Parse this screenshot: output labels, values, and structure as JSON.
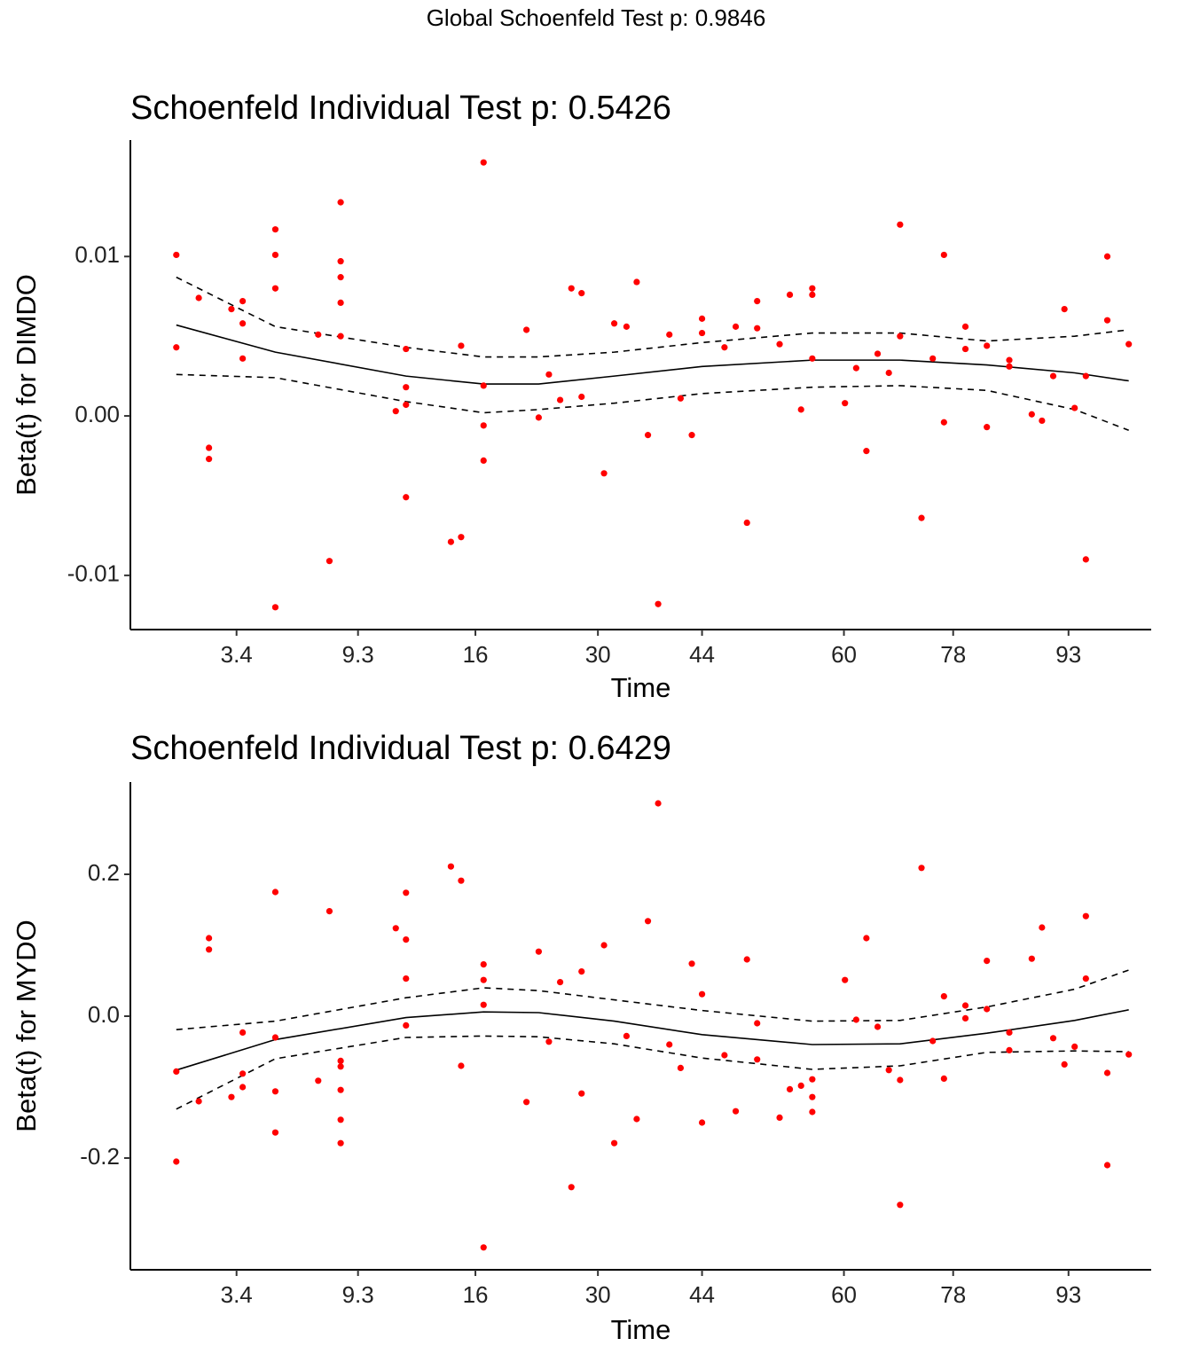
{
  "title": "Global Schoenfeld Test p: 0.9846",
  "chart_data": [
    {
      "type": "scatter",
      "title": "Schoenfeld Individual Test p: 0.5426",
      "xlabel": "Time",
      "ylabel": "Beta(t) for DIMDO",
      "xlim": [
        0,
        100
      ],
      "ylim": [
        -0.0134,
        0.0173
      ],
      "xticks": [
        {
          "value": 10.4,
          "label": "3.4"
        },
        {
          "value": 22.3,
          "label": "9.3"
        },
        {
          "value": 33.8,
          "label": "16"
        },
        {
          "value": 45.8,
          "label": "30"
        },
        {
          "value": 56.0,
          "label": "44"
        },
        {
          "value": 69.9,
          "label": "60"
        },
        {
          "value": 80.6,
          "label": "78"
        },
        {
          "value": 91.9,
          "label": "93"
        }
      ],
      "yticks": [
        -0.01,
        {
          "value": 0,
          "label": "0.00"
        },
        0.01
      ],
      "points": {
        "color": "#ff0000",
        "x": [
          4.5,
          4.5,
          6.7,
          7.7,
          7.7,
          9.9,
          11.0,
          11.0,
          11.0,
          14.2,
          14.2,
          14.2,
          14.2,
          18.4,
          19.5,
          20.6,
          20.6,
          20.6,
          20.6,
          20.6,
          26.0,
          27.0,
          27.0,
          27.0,
          27.0,
          31.4,
          32.4,
          32.4,
          34.6,
          34.6,
          34.6,
          34.6,
          38.8,
          40.0,
          41.0,
          42.1,
          43.2,
          44.2,
          44.2,
          46.4,
          47.4,
          48.6,
          49.6,
          50.7,
          51.7,
          52.8,
          53.9,
          55.0,
          56.0,
          56.0,
          58.2,
          59.3,
          60.4,
          61.4,
          61.4,
          63.6,
          64.6,
          65.7,
          66.8,
          66.8,
          66.8,
          70.0,
          71.1,
          72.1,
          73.2,
          74.3,
          75.4,
          75.4,
          77.5,
          78.6,
          79.7,
          79.7,
          81.8,
          81.8,
          83.9,
          83.9,
          86.1,
          86.1,
          88.3,
          89.3,
          90.4,
          91.5,
          92.5,
          93.6,
          93.6,
          95.7,
          95.7,
          97.8
        ],
        "y": [
          0.0101,
          0.0043,
          0.0074,
          -0.002,
          -0.0027,
          0.0067,
          0.0072,
          0.0058,
          0.0036,
          0.0117,
          0.0101,
          0.008,
          -0.012,
          0.0051,
          -0.0091,
          0.0134,
          0.0097,
          0.0087,
          0.0071,
          0.005,
          0.0003,
          0.0042,
          0.0018,
          0.0007,
          -0.0051,
          -0.0079,
          -0.0076,
          0.0044,
          0.0159,
          0.0019,
          -0.0006,
          -0.0028,
          0.0054,
          -0.0001,
          0.0026,
          0.001,
          0.008,
          0.0077,
          0.0012,
          -0.0036,
          0.0058,
          0.0056,
          0.0084,
          -0.0012,
          -0.0118,
          0.0051,
          0.0011,
          -0.0012,
          0.0061,
          0.0052,
          0.0043,
          0.0056,
          -0.0067,
          0.0072,
          0.0055,
          0.0045,
          0.0076,
          0.0004,
          0.008,
          0.0076,
          0.0036,
          0.0008,
          0.003,
          -0.0022,
          0.0039,
          0.0027,
          0.012,
          0.005,
          -0.0064,
          0.0036,
          0.0101,
          -0.0004,
          0.0056,
          0.0042,
          0.0044,
          -0.0007,
          0.0035,
          0.0031,
          0.0001,
          -0.0003,
          0.0025,
          0.0067,
          0.0005,
          -0.009,
          0.0025,
          0.01,
          0.006,
          0.0045
        ]
      },
      "curves": {
        "color": "#000000",
        "x": [
          4.5,
          14.2,
          27.0,
          34.6,
          40.0,
          47.4,
          56.0,
          66.8,
          75.4,
          83.9,
          92.5,
          97.8
        ],
        "fit": [
          0.0057,
          0.004,
          0.0025,
          0.002,
          0.002,
          0.0025,
          0.0031,
          0.0035,
          0.0035,
          0.0032,
          0.0027,
          0.0022
        ],
        "upper": [
          0.0087,
          0.0056,
          0.0043,
          0.0037,
          0.0037,
          0.004,
          0.0046,
          0.0052,
          0.0052,
          0.0047,
          0.005,
          0.0054
        ],
        "lower": [
          0.0026,
          0.0024,
          0.0009,
          0.0002,
          0.0004,
          0.0008,
          0.0014,
          0.0018,
          0.0019,
          0.0016,
          0.0004,
          -0.0009
        ]
      }
    },
    {
      "type": "scatter",
      "title": "Schoenfeld Individual Test p: 0.6429",
      "xlabel": "Time",
      "ylabel": "Beta(t) for MYDO",
      "xlim": [
        0,
        100
      ],
      "ylim": [
        -0.3575,
        0.33
      ],
      "xticks": [
        {
          "value": 10.4,
          "label": "3.4"
        },
        {
          "value": 22.3,
          "label": "9.3"
        },
        {
          "value": 33.8,
          "label": "16"
        },
        {
          "value": 45.8,
          "label": "30"
        },
        {
          "value": 56.0,
          "label": "44"
        },
        {
          "value": 69.9,
          "label": "60"
        },
        {
          "value": 80.6,
          "label": "78"
        },
        {
          "value": 91.9,
          "label": "93"
        }
      ],
      "yticks": [
        -0.2,
        {
          "value": 0,
          "label": "0.0"
        },
        0.2
      ],
      "points": {
        "color": "#ff0000",
        "x": [
          4.5,
          4.5,
          6.7,
          7.7,
          7.7,
          9.9,
          11.0,
          11.0,
          11.0,
          14.2,
          14.2,
          14.2,
          14.2,
          18.4,
          19.5,
          20.6,
          20.6,
          20.6,
          20.6,
          20.6,
          26.0,
          27.0,
          27.0,
          27.0,
          27.0,
          31.4,
          32.4,
          32.4,
          34.6,
          34.6,
          34.6,
          34.6,
          38.8,
          40.0,
          41.0,
          42.1,
          43.2,
          44.2,
          44.2,
          46.4,
          47.4,
          48.6,
          49.6,
          50.7,
          51.7,
          52.8,
          53.9,
          55.0,
          56.0,
          56.0,
          58.2,
          59.3,
          60.4,
          61.4,
          61.4,
          63.6,
          64.6,
          65.7,
          66.8,
          66.8,
          66.8,
          70.0,
          71.1,
          72.1,
          73.2,
          74.3,
          75.4,
          75.4,
          77.5,
          78.6,
          79.7,
          79.7,
          81.8,
          81.8,
          83.9,
          83.9,
          86.1,
          86.1,
          88.3,
          89.3,
          90.4,
          91.5,
          92.5,
          93.6,
          93.6,
          95.7,
          95.7,
          97.8
        ],
        "y": [
          -0.078,
          -0.205,
          -0.12,
          0.11,
          0.094,
          -0.114,
          -0.023,
          -0.081,
          -0.1,
          0.175,
          -0.03,
          -0.106,
          -0.164,
          -0.091,
          0.148,
          -0.063,
          -0.071,
          -0.104,
          -0.146,
          -0.179,
          0.124,
          0.174,
          0.108,
          0.053,
          -0.013,
          0.211,
          0.191,
          -0.07,
          0.073,
          0.051,
          0.016,
          -0.326,
          -0.121,
          0.091,
          -0.036,
          0.048,
          -0.241,
          0.063,
          -0.109,
          0.1,
          -0.179,
          -0.028,
          -0.145,
          0.134,
          0.3,
          -0.04,
          -0.073,
          0.074,
          0.031,
          -0.15,
          -0.055,
          -0.134,
          0.08,
          -0.01,
          -0.061,
          -0.143,
          -0.103,
          -0.098,
          -0.089,
          -0.114,
          -0.135,
          0.051,
          -0.005,
          0.11,
          -0.015,
          -0.076,
          -0.09,
          -0.266,
          0.209,
          -0.035,
          0.028,
          -0.088,
          0.015,
          -0.003,
          0.078,
          0.01,
          -0.023,
          -0.048,
          0.081,
          0.125,
          -0.031,
          -0.068,
          -0.043,
          0.141,
          0.053,
          -0.08,
          -0.21,
          -0.054
        ]
      },
      "curves": {
        "color": "#000000",
        "x": [
          4.5,
          14.2,
          27.0,
          34.6,
          40.0,
          47.4,
          56.0,
          66.8,
          75.4,
          83.9,
          92.5,
          97.8
        ],
        "fit": [
          -0.076,
          -0.033,
          -0.002,
          0.006,
          0.005,
          -0.007,
          -0.026,
          -0.04,
          -0.039,
          -0.024,
          -0.006,
          0.009
        ],
        "upper": [
          -0.019,
          -0.007,
          0.026,
          0.04,
          0.036,
          0.023,
          0.008,
          -0.007,
          -0.006,
          0.013,
          0.038,
          0.065
        ],
        "lower": [
          -0.131,
          -0.06,
          -0.03,
          -0.028,
          -0.029,
          -0.039,
          -0.059,
          -0.075,
          -0.07,
          -0.051,
          -0.049,
          -0.05
        ]
      }
    }
  ]
}
